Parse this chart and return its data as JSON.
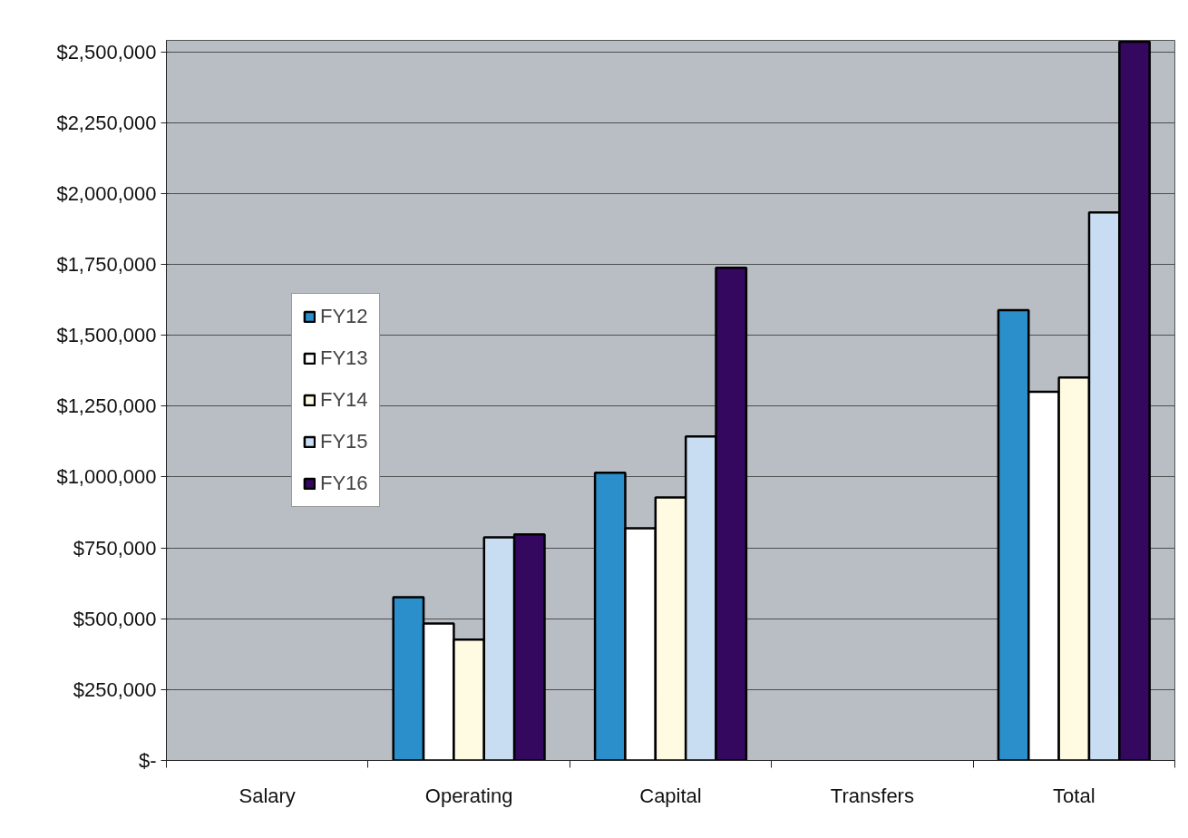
{
  "chart_data": {
    "type": "bar",
    "categories": [
      "Salary",
      "Operating",
      "Capital",
      "Transfers",
      "Total"
    ],
    "series": [
      {
        "name": "FY12",
        "color": "#2b8fcb",
        "values": [
          null,
          576000,
          1015000,
          null,
          1588000
        ]
      },
      {
        "name": "FY13",
        "color": "#ffffff",
        "values": [
          null,
          483000,
          819000,
          null,
          1300000
        ]
      },
      {
        "name": "FY14",
        "color": "#fffbe3",
        "values": [
          null,
          426000,
          928000,
          null,
          1351000
        ]
      },
      {
        "name": "FY15",
        "color": "#c8dcf2",
        "values": [
          null,
          787000,
          1143000,
          null,
          1933000
        ]
      },
      {
        "name": "FY16",
        "color": "#33085e",
        "values": [
          null,
          797000,
          1738000,
          null,
          2535000
        ]
      }
    ],
    "ylim": [
      0,
      2540000
    ],
    "yticks": [
      {
        "value": 0,
        "label": "$-"
      },
      {
        "value": 250000,
        "label": "$250,000"
      },
      {
        "value": 500000,
        "label": "$500,000"
      },
      {
        "value": 750000,
        "label": "$750,000"
      },
      {
        "value": 1000000,
        "label": "$1,000,000"
      },
      {
        "value": 1250000,
        "label": "$1,250,000"
      },
      {
        "value": 1500000,
        "label": "$1,500,000"
      },
      {
        "value": 1750000,
        "label": "$1,750,000"
      },
      {
        "value": 2000000,
        "label": "$2,000,000"
      },
      {
        "value": 2250000,
        "label": "$2,250,000"
      },
      {
        "value": 2500000,
        "label": "$2,500,000"
      }
    ],
    "grid": "y",
    "legend": "left"
  }
}
